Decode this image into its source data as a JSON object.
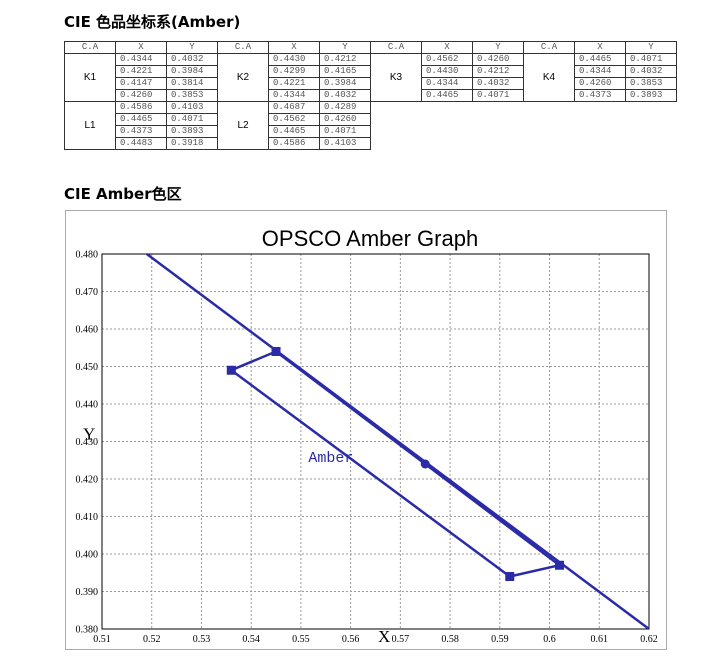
{
  "heading_table": "CIE 色品坐标系(Amber)",
  "heading_chart": "CIE Amber色区",
  "table": {
    "header": [
      "C.A",
      "X",
      "Y"
    ],
    "rows1": [
      {
        "label": "K1",
        "points": [
          [
            "0.4344",
            "0.4032"
          ],
          [
            "0.4221",
            "0.3984"
          ],
          [
            "0.4147",
            "0.3814"
          ],
          [
            "0.4260",
            "0.3853"
          ]
        ]
      },
      {
        "label": "K2",
        "points": [
          [
            "0.4430",
            "0.4212"
          ],
          [
            "0.4299",
            "0.4165"
          ],
          [
            "0.4221",
            "0.3984"
          ],
          [
            "0.4344",
            "0.4032"
          ]
        ]
      },
      {
        "label": "K3",
        "points": [
          [
            "0.4562",
            "0.4260"
          ],
          [
            "0.4430",
            "0.4212"
          ],
          [
            "0.4344",
            "0.4032"
          ],
          [
            "0.4465",
            "0.4071"
          ]
        ]
      },
      {
        "label": "K4",
        "points": [
          [
            "0.4465",
            "0.4071"
          ],
          [
            "0.4344",
            "0.4032"
          ],
          [
            "0.4260",
            "0.3853"
          ],
          [
            "0.4373",
            "0.3893"
          ]
        ]
      }
    ],
    "rows2": [
      {
        "label": "L1",
        "points": [
          [
            "0.4586",
            "0.4103"
          ],
          [
            "0.4465",
            "0.4071"
          ],
          [
            "0.4373",
            "0.3893"
          ],
          [
            "0.4483",
            "0.3918"
          ]
        ]
      },
      {
        "label": "L2",
        "points": [
          [
            "0.4687",
            "0.4289"
          ],
          [
            "0.4562",
            "0.4260"
          ],
          [
            "0.4465",
            "0.4071"
          ],
          [
            "0.4586",
            "0.4103"
          ]
        ]
      }
    ]
  },
  "chart_data": {
    "type": "line",
    "title": "OPSCO Amber Graph",
    "xlabel": "X",
    "ylabel": "Y",
    "xlim": [
      0.51,
      0.62
    ],
    "ylim": [
      0.38,
      0.48
    ],
    "xticks": [
      "0.51",
      "0.52",
      "0.53",
      "0.54",
      "0.55",
      "0.56",
      "0.57",
      "0.58",
      "0.59",
      "0.6",
      "0.61",
      "0.62"
    ],
    "yticks": [
      "0.380",
      "0.390",
      "0.400",
      "0.410",
      "0.420",
      "0.430",
      "0.440",
      "0.450",
      "0.460",
      "0.470",
      "0.480"
    ],
    "grid": true,
    "annotation": "Amber",
    "color": "#2b2ba8",
    "series": [
      {
        "points": [
          [
            0.536,
            0.449
          ],
          [
            0.545,
            0.454
          ],
          [
            0.602,
            0.397
          ],
          [
            0.592,
            0.394
          ],
          [
            0.536,
            0.449
          ]
        ]
      },
      {
        "points": [
          [
            0.519,
            0.48
          ],
          [
            0.62,
            0.38
          ]
        ]
      },
      {
        "points": [
          [
            0.575,
            0.424
          ]
        ]
      }
    ]
  }
}
